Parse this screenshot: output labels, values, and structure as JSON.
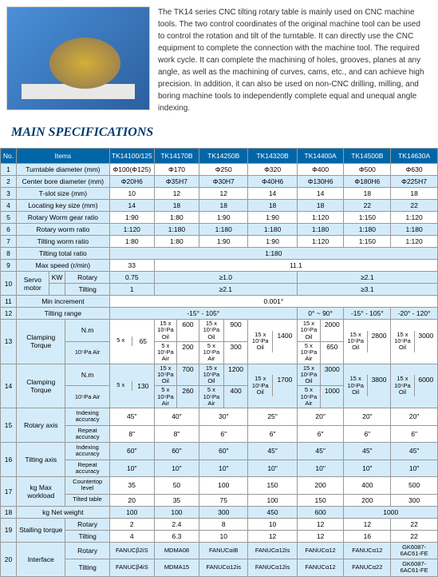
{
  "description": "The TK14 series CNC tilting rotary table is mainly used on CNC machine tools. The two control coordinates of the original machine tool can be used to control the rotation and tilt of the turntable. It can directly use the CNC equipment to complete the connection with the machine tool. The required work cycle. It can complete the machining of holes, grooves, planes at any angle, as well as the machining of curves, cams, etc., and can achieve high precision. In addition, it can also be used on non-CNC drilling, milling, and boring machine tools to independently complete equal and unequal angle indexing.",
  "title": "MAIN SPECIFICATIONS",
  "headers": [
    "No.",
    "Items",
    "TK14100/125",
    "TK14170B",
    "TK14250B",
    "TK14320B",
    "TK14400A",
    "TK14500B",
    "TK14630A"
  ],
  "rows": {
    "r1": {
      "no": "1",
      "item": "Turntable diameter (mm)",
      "v": [
        "Φ100(Φ125)",
        "Φ170",
        "Φ250",
        "Φ320",
        "Φ400",
        "Φ500",
        "Φ630"
      ]
    },
    "r2": {
      "no": "2",
      "item": "Center bore diameter (mm)",
      "v": [
        "Φ20H6",
        "Φ35H7",
        "Φ30H7",
        "Φ40H6",
        "Φ130H6",
        "Φ180H6",
        "Φ225H7"
      ]
    },
    "r3": {
      "no": "3",
      "item": "T-slot size (mm)",
      "v": [
        "10",
        "12",
        "12",
        "14",
        "14",
        "18",
        "18"
      ]
    },
    "r4": {
      "no": "4",
      "item": "Locating key size (mm)",
      "v": [
        "14",
        "18",
        "18",
        "18",
        "18",
        "22",
        "22"
      ]
    },
    "r5": {
      "no": "5",
      "item": "Rotary Worm gear ratio",
      "v": [
        "1:90",
        "1:80",
        "1:90",
        "1:90",
        "1:120",
        "1:150",
        "1:120"
      ]
    },
    "r6": {
      "no": "6",
      "item": "Rotary worm ratio",
      "v": [
        "1:120",
        "1:180",
        "1:180",
        "1:180",
        "1:180",
        "1:180",
        "1:180"
      ]
    },
    "r7": {
      "no": "7",
      "item": "Tilting worm ratio",
      "v": [
        "1:80",
        "1:80",
        "1:90",
        "1:90",
        "1:120",
        "1:150",
        "1:120"
      ]
    },
    "r8": {
      "no": "8",
      "item": "Tilting total ratio",
      "v": "1:180"
    },
    "r9": {
      "no": "9",
      "item": "Max speed (r/min)",
      "v1": "33",
      "v2": "11.1"
    },
    "r10a": {
      "no": "10",
      "item": "KW",
      "item2": "Servo motor",
      "sub1": "Rotary",
      "sub2": "Tilting",
      "r": [
        "0.75",
        "≥1.0",
        "≥2.1"
      ],
      "t": [
        "1",
        "≥2.1",
        "≥3.1"
      ]
    },
    "r11": {
      "no": "11",
      "item": "Min increment",
      "v": "0.001°"
    },
    "r12": {
      "no": "12",
      "item": "Tilting range",
      "v1": "-15° - 105°",
      "v2": "0° ~ 90°",
      "v3": "-15° - 105°",
      "v4": "-20° - 120°"
    },
    "r13": {
      "no": "13",
      "item": "Clamping Torque",
      "unit": "N.m",
      "c1": {
        "a": "5 x",
        "b": "10⁵Pa Air",
        "v": "65"
      },
      "c2": {
        "a1": "15 x 10⁵Pa Oil",
        "v1": "600",
        "a2": "5 x 10⁵Pa Air",
        "v2": "200"
      },
      "c3": {
        "a1": "15 x 10⁵Pa Oil",
        "v1": "900",
        "a2": "5 x 10⁵Pa Air",
        "v2": "300"
      },
      "c4": {
        "a": "15 x 10⁵Pa Oil",
        "v": "1400"
      },
      "c5": {
        "a1": "15 x 10⁵Pa Oil",
        "v1": "2000",
        "a2": "5 x 10⁵Pa Air",
        "v2": "650"
      },
      "c6": {
        "a": "15 x 10⁵Pa Oil",
        "v": "2800"
      },
      "c7": {
        "a": "15 x 10⁵Pa Oil",
        "v": "3000"
      }
    },
    "r14": {
      "no": "14",
      "item": "Clamping Torque",
      "unit": "N.m",
      "c1": {
        "a": "5 x",
        "b": "10⁵Pa Air",
        "v": "130"
      },
      "c2": {
        "a1": "15 x 10⁵Pa Oil",
        "v1": "700",
        "a2": "5 x 10⁵Pa Air",
        "v2": "260"
      },
      "c3": {
        "a1": "15 x 10⁵Pa Oil",
        "v1": "1200",
        "a2": "5 x 10⁵Pa Air",
        "v2": "400"
      },
      "c4": {
        "a": "15 x 10⁵Pa Oil",
        "v": "1700"
      },
      "c5": {
        "a1": "15 x 10⁵Pa Oil",
        "v1": "3000",
        "a2": "5 x 10⁵Pa Air",
        "v2": "1000"
      },
      "c6": {
        "a": "15 x 10⁵Pa Oil",
        "v": "3800"
      },
      "c7": {
        "a": "15 x 10⁵Pa Oil",
        "v": "6000"
      }
    },
    "r15": {
      "no": "15",
      "item": "Rotary axis",
      "s1": "Indexing accuracy",
      "s2": "Repeat accuracy",
      "v1": [
        "45\"",
        "40\"",
        "30\"",
        "25\"",
        "20\"",
        "20\"",
        "20\""
      ],
      "v2": [
        "8\"",
        "8\"",
        "6\"",
        "6\"",
        "6\"",
        "6\"",
        "6\""
      ]
    },
    "r16": {
      "no": "16",
      "item": "Tilting axis",
      "s1": "Indexing accuracy",
      "s2": "Repeat accuracy",
      "v1": [
        "60\"",
        "60\"",
        "60\"",
        "45\"",
        "45\"",
        "45\"",
        "45\""
      ],
      "v2": [
        "10\"",
        "10\"",
        "10\"",
        "10\"",
        "10\"",
        "10\"",
        "10\""
      ]
    },
    "r17": {
      "no": "17",
      "item": "kg Max workload",
      "s1": "Countertop level",
      "s2": "Tilted table",
      "v1": [
        "35",
        "50",
        "100",
        "150",
        "200",
        "400",
        "500"
      ],
      "v2": [
        "20",
        "35",
        "75",
        "100",
        "150",
        "200",
        "300"
      ]
    },
    "r18": {
      "no": "18",
      "item": "kg Net weight",
      "v": [
        "100",
        "100",
        "300",
        "450",
        "600",
        "1000"
      ]
    },
    "r19": {
      "no": "19",
      "item": "Stalling torque",
      "s1": "Rotary",
      "s2": "Tilting",
      "v1": [
        "2",
        "2.4",
        "8",
        "10",
        "12",
        "12",
        "22"
      ],
      "v2": [
        "4",
        "6.3",
        "10",
        "12",
        "12",
        "16",
        "22"
      ]
    },
    "r20": {
      "no": "20",
      "item": "Interface",
      "s1": "Rotary",
      "s2": "Tilting",
      "v1": [
        "FANUCβ2iS",
        "MDMA08",
        "FANUCαiB",
        "FANUCα12is",
        "FANUCα12",
        "FANUCα12",
        "GK6087-6AC61-FE"
      ],
      "v2": [
        "FANUCβ4iS",
        "MDMA15",
        "FANUCα12is",
        "FANUCα12is",
        "FANUCα12",
        "FANUCα22",
        "GK6087-6AC61-FE"
      ]
    }
  }
}
